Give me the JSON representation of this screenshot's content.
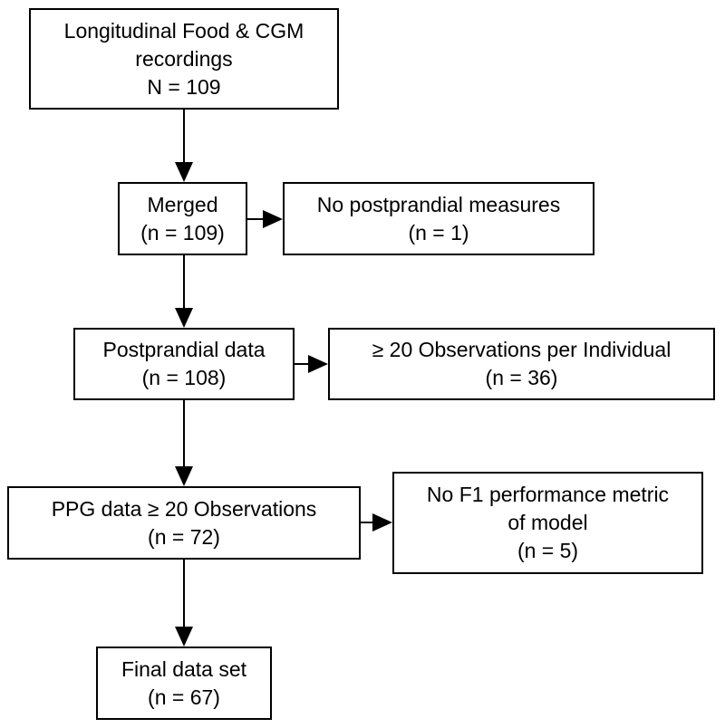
{
  "boxes": {
    "source": {
      "lines": [
        "Longitudinal Food & CGM",
        "recordings",
        "N = 109"
      ]
    },
    "merged": {
      "lines": [
        "Merged",
        "(n = 109)"
      ]
    },
    "no_postprandial": {
      "lines": [
        "No postprandial measures",
        "(n = 1)"
      ]
    },
    "postprandial": {
      "lines": [
        "Postprandial data",
        "(n = 108)"
      ]
    },
    "min_observations": {
      "lines": [
        "≥ 20 Observations per Individual",
        "(n = 36)"
      ]
    },
    "ppg_data": {
      "lines": [
        "PPG data ≥ 20 Observations",
        "(n = 72)"
      ]
    },
    "no_f1": {
      "lines": [
        "No F1 performance metric",
        "of model",
        "(n = 5)"
      ]
    },
    "final": {
      "lines": [
        "Final data set",
        "(n = 67)"
      ]
    }
  },
  "style": {
    "line_color": "#000000",
    "background": "#ffffff"
  }
}
